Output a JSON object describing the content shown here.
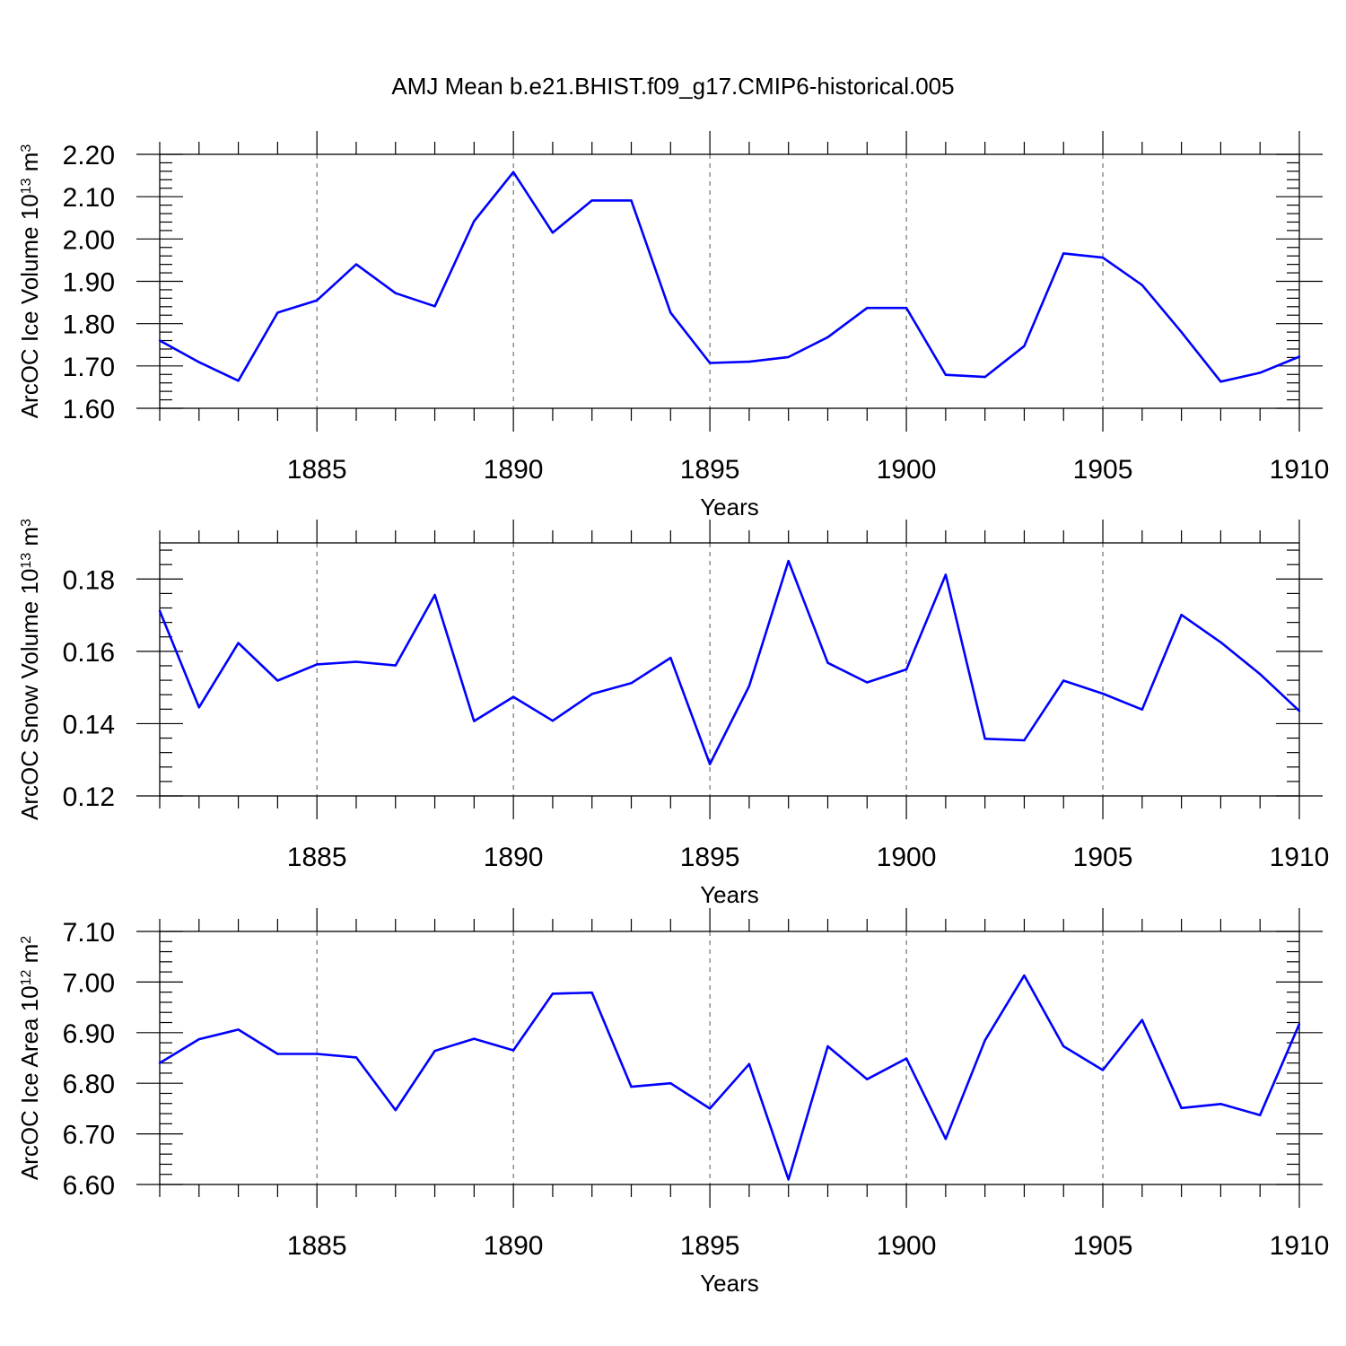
{
  "figure": {
    "title": "AMJ Mean b.e21.BHIST.f09_g17.CMIP6-historical.005"
  },
  "chart_data": [
    {
      "type": "line",
      "title": "",
      "xlabel": "Years",
      "ylabel_main": "ArcOC Ice Volume 10",
      "ylabel_sup": "13",
      "ylabel_unit": " m",
      "ylabel_unit_sup": "3",
      "xlim": [
        1881,
        1910
      ],
      "ylim": [
        1.6,
        2.2
      ],
      "yticks": [
        1.6,
        1.7,
        1.8,
        1.9,
        2.0,
        2.1,
        2.2
      ],
      "ytick_labels": [
        "1.60",
        "1.70",
        "1.80",
        "1.90",
        "2.00",
        "2.10",
        "2.20"
      ],
      "xticks": [
        1885,
        1890,
        1895,
        1900,
        1905,
        1910
      ],
      "xtick_labels": [
        "1885",
        "1890",
        "1895",
        "1900",
        "1905",
        "1910"
      ],
      "series": [
        {
          "name": "ArcOC Ice Volume",
          "color": "#0000ff",
          "x": [
            1881,
            1882,
            1883,
            1884,
            1885,
            1886,
            1887,
            1888,
            1889,
            1890,
            1891,
            1892,
            1893,
            1894,
            1895,
            1896,
            1897,
            1898,
            1899,
            1900,
            1901,
            1902,
            1903,
            1904,
            1905,
            1906,
            1907,
            1908,
            1909,
            1910
          ],
          "values": [
            1.76,
            1.709,
            1.665,
            1.826,
            1.855,
            1.94,
            1.872,
            1.841,
            2.042,
            2.158,
            2.015,
            2.091,
            2.091,
            1.826,
            1.707,
            1.71,
            1.721,
            1.768,
            1.837,
            1.837,
            1.679,
            1.674,
            1.747,
            1.966,
            1.956,
            1.891,
            1.78,
            1.663,
            1.684,
            1.722
          ]
        }
      ]
    },
    {
      "type": "line",
      "title": "",
      "xlabel": "Years",
      "ylabel_main": "ArcOC Snow Volume 10",
      "ylabel_sup": "13",
      "ylabel_unit": " m",
      "ylabel_unit_sup": "3",
      "xlim": [
        1881,
        1910
      ],
      "ylim": [
        0.12,
        0.19
      ],
      "yticks": [
        0.12,
        0.14,
        0.16,
        0.18
      ],
      "ytick_labels": [
        "0.12",
        "0.14",
        "0.16",
        "0.18"
      ],
      "xticks": [
        1885,
        1890,
        1895,
        1900,
        1905,
        1910
      ],
      "xtick_labels": [
        "1885",
        "1890",
        "1895",
        "1900",
        "1905",
        "1910"
      ],
      "series": [
        {
          "name": "ArcOC Snow Volume",
          "color": "#0000ff",
          "x": [
            1881,
            1882,
            1883,
            1884,
            1885,
            1886,
            1887,
            1888,
            1889,
            1890,
            1891,
            1892,
            1893,
            1894,
            1895,
            1896,
            1897,
            1898,
            1899,
            1900,
            1901,
            1902,
            1903,
            1904,
            1905,
            1906,
            1907,
            1908,
            1909,
            1910
          ],
          "values": [
            0.1712,
            0.1445,
            0.1623,
            0.1519,
            0.1564,
            0.1571,
            0.1561,
            0.1756,
            0.1407,
            0.1474,
            0.1408,
            0.1482,
            0.1512,
            0.1582,
            0.1288,
            0.1504,
            0.185,
            0.1568,
            0.1514,
            0.155,
            0.1812,
            0.1358,
            0.1354,
            0.1519,
            0.1483,
            0.1439,
            0.1701,
            0.1625,
            0.1537,
            0.1435
          ]
        }
      ]
    },
    {
      "type": "line",
      "title": "",
      "xlabel": "Years",
      "ylabel_main": "ArcOC Ice Area 10",
      "ylabel_sup": "12",
      "ylabel_unit": " m",
      "ylabel_unit_sup": "2",
      "xlim": [
        1881,
        1910
      ],
      "ylim": [
        6.6,
        7.1
      ],
      "yticks": [
        6.6,
        6.7,
        6.8,
        6.9,
        7.0,
        7.1
      ],
      "ytick_labels": [
        "6.60",
        "6.70",
        "6.80",
        "6.90",
        "7.00",
        "7.10"
      ],
      "xticks": [
        1885,
        1890,
        1895,
        1900,
        1905,
        1910
      ],
      "xtick_labels": [
        "1885",
        "1890",
        "1895",
        "1900",
        "1905",
        "1910"
      ],
      "series": [
        {
          "name": "ArcOC Ice Area",
          "color": "#0000ff",
          "x": [
            1881,
            1882,
            1883,
            1884,
            1885,
            1886,
            1887,
            1888,
            1889,
            1890,
            1891,
            1892,
            1893,
            1894,
            1895,
            1896,
            1897,
            1898,
            1899,
            1900,
            1901,
            1902,
            1903,
            1904,
            1905,
            1906,
            1907,
            1908,
            1909,
            1910
          ],
          "values": [
            6.84,
            6.887,
            6.906,
            6.858,
            6.858,
            6.851,
            6.747,
            6.864,
            6.888,
            6.865,
            6.977,
            6.979,
            6.793,
            6.8,
            6.75,
            6.838,
            6.61,
            6.873,
            6.808,
            6.849,
            6.69,
            6.885,
            7.013,
            6.873,
            6.826,
            6.925,
            6.751,
            6.759,
            6.737,
            6.917
          ]
        }
      ]
    }
  ]
}
